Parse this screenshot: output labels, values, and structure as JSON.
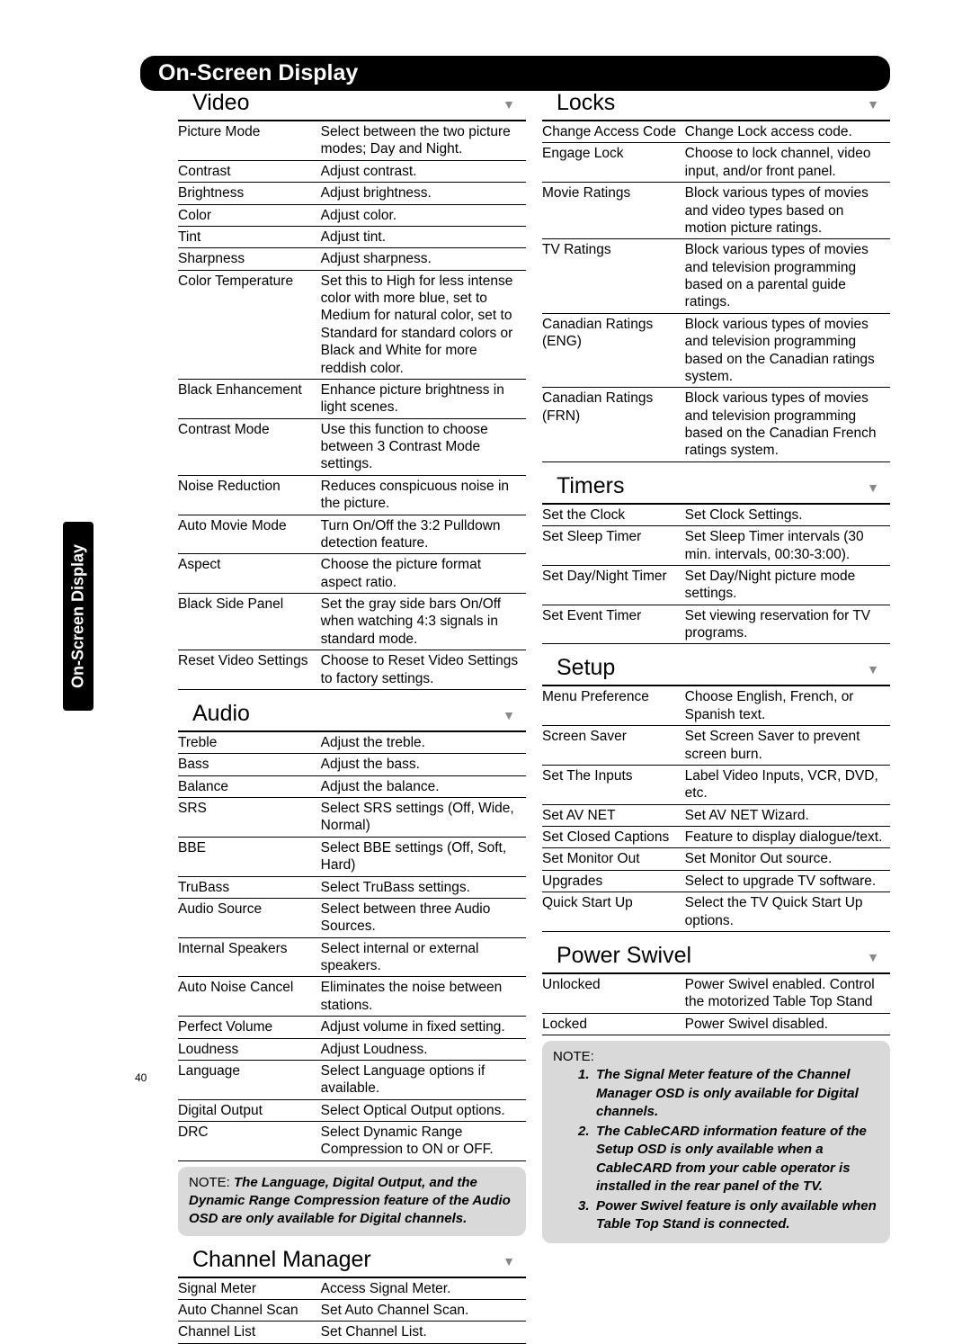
{
  "page": {
    "header": "On-Screen Display",
    "sideTab": "On-Screen Display",
    "pageNumber": "40"
  },
  "colors": {
    "headerBg": "#000000",
    "headerText": "#ffffff",
    "bodyText": "#000000",
    "noteBg": "#d9d9d9",
    "arrow": "#888888",
    "rule": "#000000"
  },
  "typography": {
    "header_fontsize": 25,
    "section_title_fontsize": 25,
    "body_fontsize": 15.5,
    "note_fontsize": 15
  },
  "sections": {
    "video": {
      "title": "Video",
      "items": [
        {
          "label": "Picture Mode",
          "desc": "Select between the two picture modes; Day and Night."
        },
        {
          "label": "Contrast",
          "desc": "Adjust contrast."
        },
        {
          "label": "Brightness",
          "desc": "Adjust brightness."
        },
        {
          "label": "Color",
          "desc": "Adjust color."
        },
        {
          "label": "Tint",
          "desc": "Adjust tint."
        },
        {
          "label": "Sharpness",
          "desc": "Adjust sharpness."
        },
        {
          "label": "Color Temperature",
          "desc": "Set this to High for less intense color with more blue, set to Medium for natural color, set to Standard for standard colors or Black and White for more reddish color."
        },
        {
          "label": "Black Enhancement",
          "desc": "Enhance picture brightness in light scenes."
        },
        {
          "label": "Contrast Mode",
          "desc": "Use this function to choose between 3 Contrast Mode settings."
        },
        {
          "label": "Noise Reduction",
          "desc": "Reduces conspicuous noise in the picture."
        },
        {
          "label": "Auto Movie Mode",
          "desc": "Turn On/Off the 3:2 Pulldown detection feature."
        },
        {
          "label": "Aspect",
          "desc": "Choose the picture format aspect ratio."
        },
        {
          "label": "Black Side Panel",
          "desc": "Set the gray side bars On/Off when watching 4:3 signals in standard mode."
        },
        {
          "label": "Reset Video Settings",
          "desc": "Choose to Reset Video Settings to factory settings."
        }
      ]
    },
    "audio": {
      "title": "Audio",
      "items": [
        {
          "label": "Treble",
          "desc": "Adjust the treble."
        },
        {
          "label": "Bass",
          "desc": "Adjust the bass."
        },
        {
          "label": "Balance",
          "desc": "Adjust the balance."
        },
        {
          "label": "SRS",
          "desc": "Select SRS settings (Off, Wide, Normal)"
        },
        {
          "label": "BBE",
          "desc": "Select BBE settings (Off, Soft, Hard)"
        },
        {
          "label": "TruBass",
          "desc": "Select TruBass settings."
        },
        {
          "label": "Audio Source",
          "desc": "Select between three Audio Sources."
        },
        {
          "label": "Internal Speakers",
          "desc": "Select internal or external speakers."
        },
        {
          "label": "Auto Noise Cancel",
          "desc": "Eliminates the noise between stations."
        },
        {
          "label": "Perfect Volume",
          "desc": "Adjust volume in fixed setting."
        },
        {
          "label": "Loudness",
          "desc": "Adjust Loudness."
        },
        {
          "label": "Language",
          "desc": "Select Language options if available."
        },
        {
          "label": "Digital Output",
          "desc": "Select Optical Output options."
        },
        {
          "label": "DRC",
          "desc": "Select Dynamic Range Compression to ON or OFF."
        }
      ],
      "note_lead": "NOTE:",
      "note": "The Language, Digital Output, and the Dynamic Range Compression feature of the Audio OSD are only available for Digital channels."
    },
    "channelManager": {
      "title": "Channel Manager",
      "items": [
        {
          "label": "Signal Meter",
          "desc": "Access Signal Meter."
        },
        {
          "label": "Auto Channel Scan",
          "desc": "Set Auto Channel Scan."
        },
        {
          "label": "Channel List",
          "desc": "Set Channel List."
        }
      ]
    },
    "locks": {
      "title": "Locks",
      "items": [
        {
          "label": "Change Access Code",
          "desc": "Change Lock access code."
        },
        {
          "label": "Engage Lock",
          "desc": "Choose to lock channel, video input, and/or front panel."
        },
        {
          "label": "Movie Ratings",
          "desc": "Block various types of movies and video types based on motion picture ratings."
        },
        {
          "label": "TV Ratings",
          "desc": "Block various types of movies and television programming based on a parental guide ratings."
        },
        {
          "label": "Canadian Ratings (ENG)",
          "desc": "Block various types of movies and television programming based on the Canadian ratings system."
        },
        {
          "label": "Canadian Ratings (FRN)",
          "desc": "Block various types of movies and television programming based on the Canadian French ratings system."
        }
      ]
    },
    "timers": {
      "title": "Timers",
      "items": [
        {
          "label": "Set the Clock",
          "desc": "Set Clock Settings."
        },
        {
          "label": "Set Sleep Timer",
          "desc": "Set Sleep Timer intervals (30 min. intervals, 00:30-3:00)."
        },
        {
          "label": "Set Day/Night Timer",
          "desc": "Set Day/Night picture mode settings."
        },
        {
          "label": "Set Event Timer",
          "desc": "Set viewing reservation for TV programs."
        }
      ]
    },
    "setup": {
      "title": "Setup",
      "items": [
        {
          "label": "Menu Preference",
          "desc": "Choose English, French, or Spanish text."
        },
        {
          "label": "Screen Saver",
          "desc": "Set Screen Saver to prevent screen burn."
        },
        {
          "label": "Set The Inputs",
          "desc": "Label Video Inputs, VCR, DVD, etc."
        },
        {
          "label": "Set AV NET",
          "desc": "Set AV NET Wizard."
        },
        {
          "label": "Set Closed Captions",
          "desc": "Feature to display dialogue/text."
        },
        {
          "label": "Set Monitor Out",
          "desc": "Set Monitor Out source."
        },
        {
          "label": "Upgrades",
          "desc": "Select to upgrade TV software."
        },
        {
          "label": "Quick Start Up",
          "desc": "Select the TV Quick Start Up options."
        }
      ]
    },
    "powerSwivel": {
      "title": "Power Swivel",
      "items": [
        {
          "label": "Unlocked",
          "desc": "Power Swivel enabled.  Control the motorized Table Top Stand"
        },
        {
          "label": "Locked",
          "desc": "Power Swivel disabled."
        }
      ]
    },
    "rightNote": {
      "lead": "NOTE:",
      "items": [
        {
          "n": "1.",
          "text": "The Signal Meter feature of the Channel Manager OSD is only available for Digital channels."
        },
        {
          "n": "2.",
          "text": "The CableCARD information feature of the Setup OSD is only available when a CableCARD from your cable operator is installed in the rear panel of the TV."
        },
        {
          "n": "3.",
          "text": "Power Swivel feature is only available when Table Top Stand is connected."
        }
      ]
    }
  }
}
